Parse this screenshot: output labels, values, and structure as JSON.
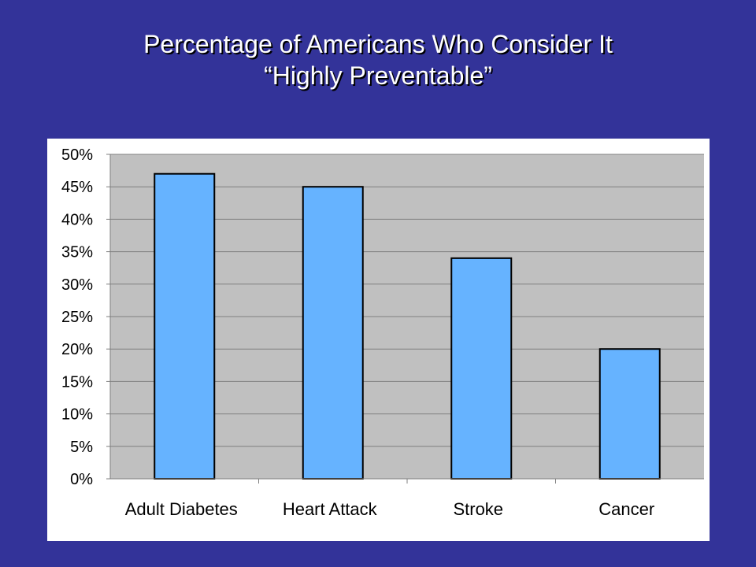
{
  "slide": {
    "title_line1": "Percentage of Americans Who Consider It",
    "title_line2": "“Highly Preventable”"
  },
  "colors": {
    "background": "#333399",
    "plot_area": "#c0c0c0",
    "bar_fill": "#66b3ff",
    "bar_stroke": "#000000"
  },
  "chart_data": {
    "type": "bar",
    "categories": [
      "Adult Diabetes",
      "Heart Attack",
      "Stroke",
      "Cancer"
    ],
    "values": [
      47,
      45,
      34,
      20
    ],
    "ylim": [
      0,
      50
    ],
    "yticks": [
      "0%",
      "5%",
      "10%",
      "15%",
      "20%",
      "25%",
      "30%",
      "35%",
      "40%",
      "45%",
      "50%"
    ],
    "ytick_step": 5,
    "grid": true,
    "legend": "none"
  }
}
